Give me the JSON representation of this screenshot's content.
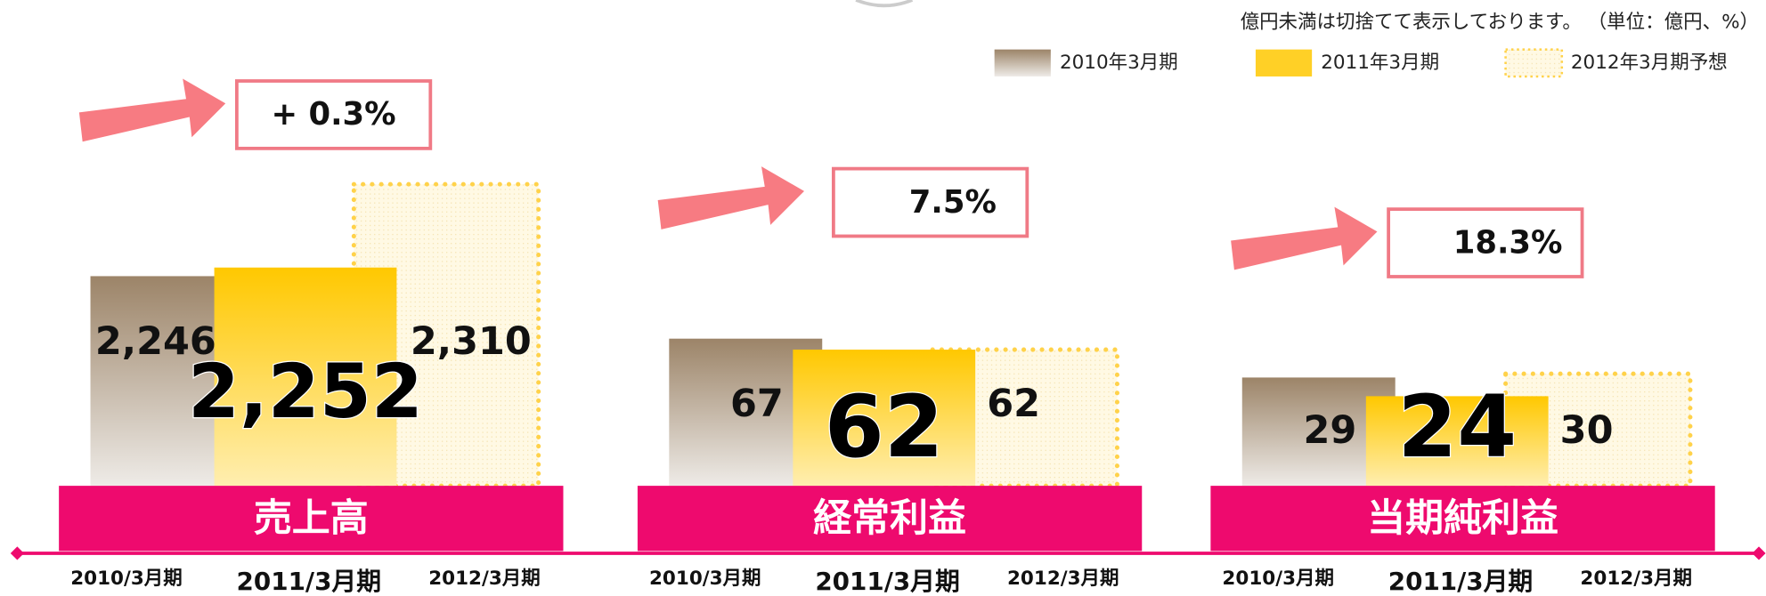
{
  "note": "億円未満は切捨てて表示しております。 （単位：億円、%）",
  "legend": {
    "names": [
      "2010年3月期",
      "2011年3月期",
      "2012年3月期予想"
    ],
    "colors": [
      "#9c8468",
      "#ffc800",
      "#ffd24a"
    ]
  },
  "chart_data": [
    {
      "type": "bar",
      "title": "売上高",
      "annotation": "+ 0.3%",
      "categories": [
        "2010/3月期",
        "2011/3月期",
        "2012/3月期"
      ],
      "values": [
        2246,
        2252,
        2310
      ],
      "value_labels": [
        "2,246",
        "2,252",
        "2,310"
      ],
      "ylim": [
        2100,
        2360
      ]
    },
    {
      "type": "bar",
      "title": "経常利益",
      "annotation": "7.5%",
      "categories": [
        "2010/3月期",
        "2011/3月期",
        "2012/3月期"
      ],
      "values": [
        67,
        62,
        62
      ],
      "ylim": [
        0,
        170
      ]
    },
    {
      "type": "bar",
      "title": "当期純利益",
      "annotation": "18.3%",
      "categories": [
        "2010/3月期",
        "2011/3月期",
        "2012/3月期"
      ],
      "values": [
        29,
        24,
        30
      ],
      "ylim": [
        0,
        100
      ]
    }
  ]
}
